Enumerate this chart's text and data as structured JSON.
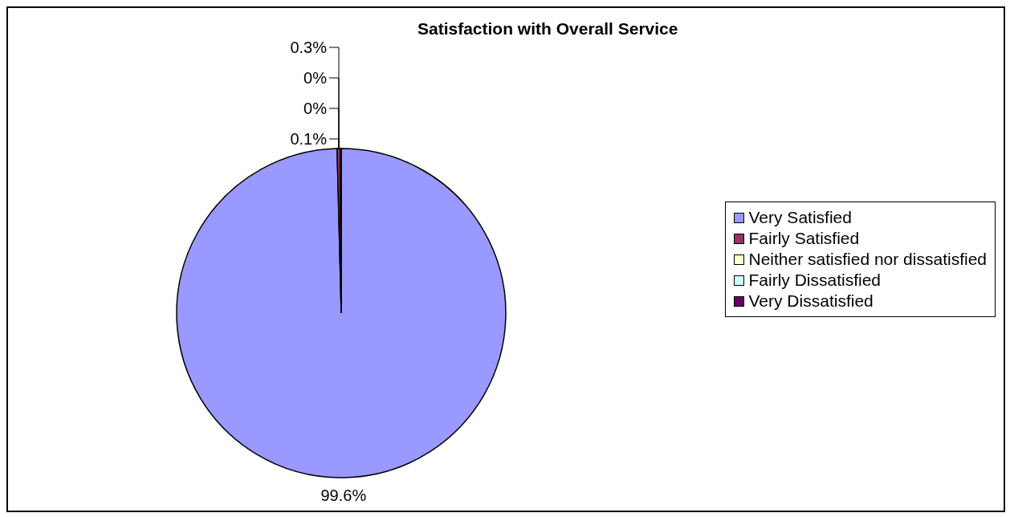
{
  "chart_data": {
    "type": "pie",
    "title": "Satisfaction with Overall Service",
    "categories": [
      "Very Satisfied",
      "Fairly Satisfied",
      "Neither satisfied nor dissatisfied",
      "Fairly Dissatisfied",
      "Very Dissatisfied"
    ],
    "values": [
      99.6,
      0.3,
      0,
      0,
      0.1
    ],
    "value_labels": [
      "99.6%",
      "0.3%",
      "0%",
      "0%",
      "0.1%"
    ],
    "colors": [
      "#9999ff",
      "#993366",
      "#ffffcc",
      "#ccffff",
      "#660066"
    ],
    "legend": "right"
  }
}
